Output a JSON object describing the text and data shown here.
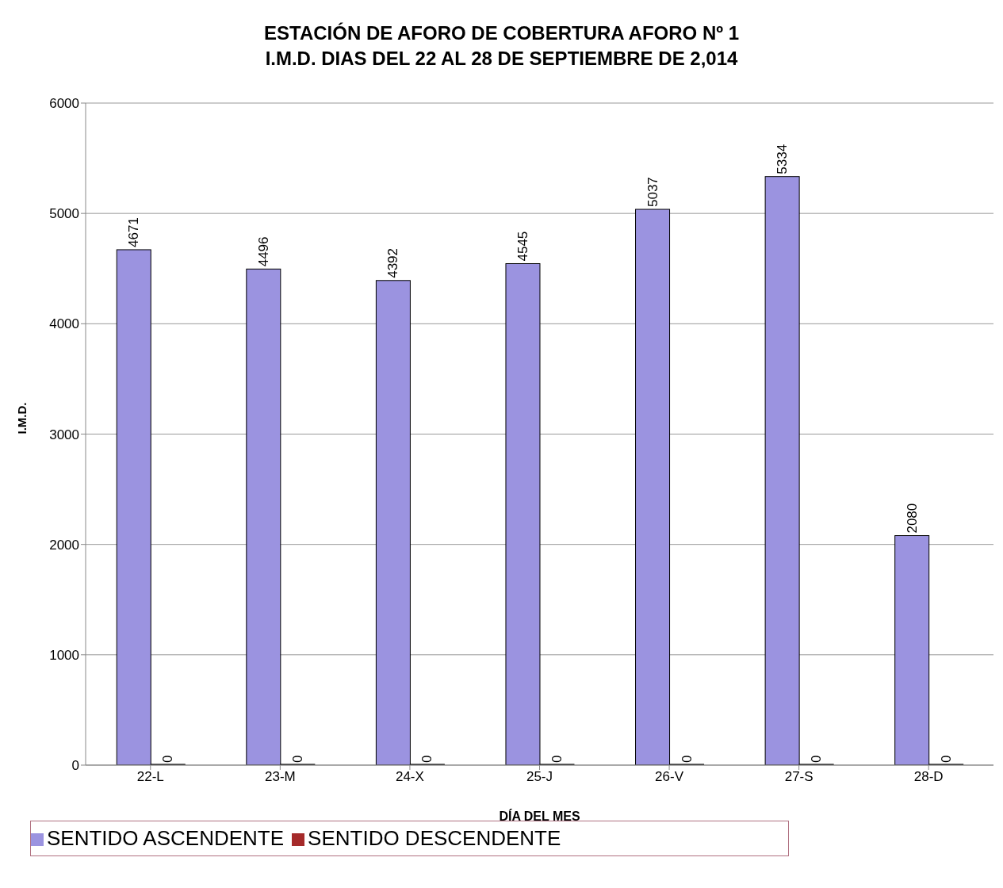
{
  "chart_data": {
    "type": "bar",
    "title": "ESTACIÓN DE AFORO DE COBERTURA AFORO Nº 1\nI.M.D. DIAS DEL 22 AL 28 DE SEPTIEMBRE DE 2,014",
    "xlabel": "DÍA DEL MES",
    "ylabel": "I.M.D.",
    "categories": [
      "22-L",
      "23-M",
      "24-X",
      "25-J",
      "26-V",
      "27-S",
      "28-D"
    ],
    "series": [
      {
        "name": "SENTIDO ASCENDENTE",
        "color": "#9b93e0",
        "values": [
          4671,
          4496,
          4392,
          4545,
          5037,
          5334,
          2080
        ]
      },
      {
        "name": "SENTIDO DESCENDENTE",
        "color": "#a52a2a",
        "values": [
          0,
          0,
          0,
          0,
          0,
          0,
          0
        ]
      }
    ],
    "ylim": [
      0,
      6000
    ],
    "yticks": [
      0,
      1000,
      2000,
      3000,
      4000,
      5000,
      6000
    ],
    "grid": "y",
    "legend": "bottom",
    "data_labels": true
  }
}
